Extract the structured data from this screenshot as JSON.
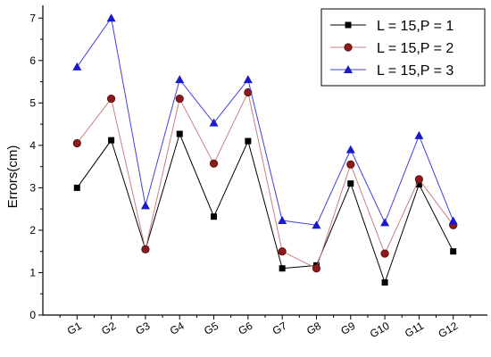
{
  "chart_data": {
    "type": "line",
    "title": "",
    "xlabel": "",
    "ylabel": "Errors(cm)",
    "categories": [
      "G1",
      "G2",
      "G3",
      "G4",
      "G5",
      "G6",
      "G7",
      "G8",
      "G9",
      "G10",
      "G11",
      "G12"
    ],
    "ylim": [
      0,
      7.3
    ],
    "yticks": [
      "0",
      "1",
      "2",
      "3",
      "4",
      "5",
      "6",
      "7"
    ],
    "grid": false,
    "legend_position": "top-right",
    "series": [
      {
        "name": "L = 15,P = 1",
        "color": "#000000",
        "marker": "square",
        "values": [
          3.0,
          4.12,
          1.55,
          4.27,
          2.32,
          4.1,
          1.1,
          1.17,
          3.1,
          0.77,
          3.08,
          1.5
        ]
      },
      {
        "name": "L = 15,P = 2",
        "color": "#8b1a1a",
        "marker": "circle",
        "values": [
          4.05,
          5.1,
          1.55,
          5.1,
          3.57,
          5.25,
          1.5,
          1.1,
          3.55,
          1.45,
          3.2,
          2.12
        ]
      },
      {
        "name": "L = 15,P = 3",
        "color": "#1a1acc",
        "marker": "triangle",
        "values": [
          5.85,
          7.0,
          2.58,
          5.55,
          4.53,
          5.55,
          2.23,
          2.12,
          3.9,
          2.18,
          4.23,
          2.22
        ]
      }
    ]
  }
}
